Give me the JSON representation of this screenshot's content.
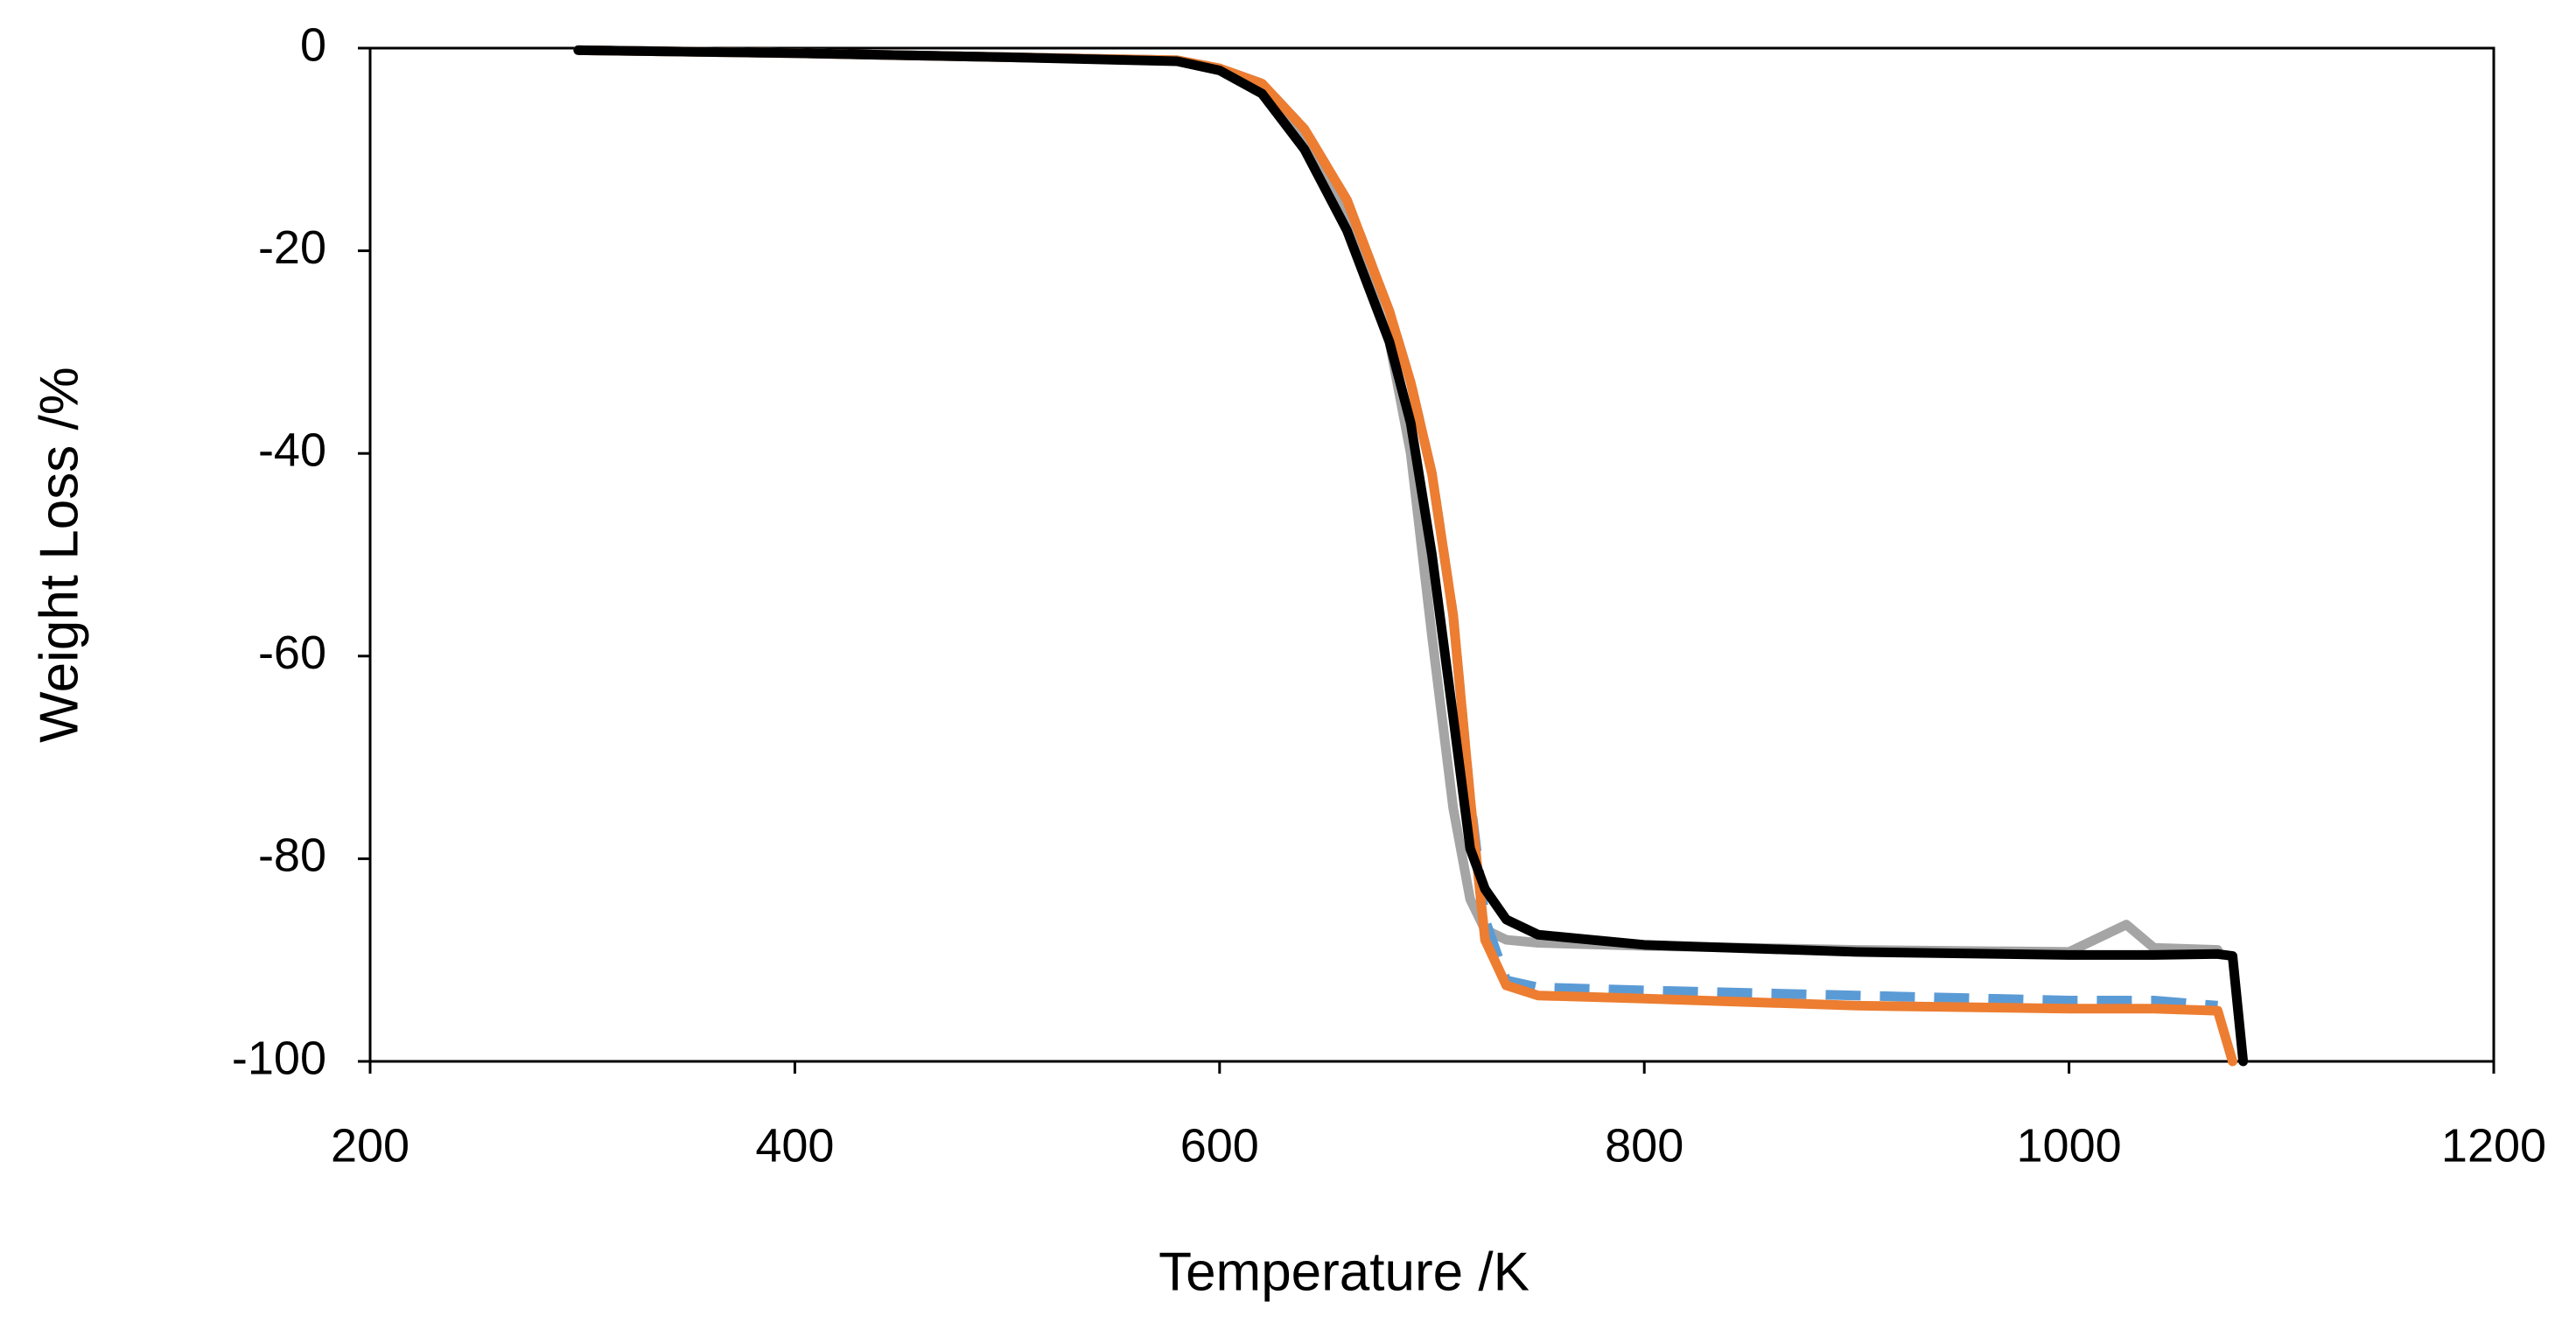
{
  "chart_data": {
    "type": "line",
    "x_label": "Temperature /K",
    "y_label": "Weight Loss /%",
    "xlim": [
      200,
      1200
    ],
    "xticks": [
      200,
      400,
      600,
      800,
      1000,
      1200
    ],
    "ylim": [
      -100,
      0
    ],
    "yticks": [
      -100,
      -80,
      -60,
      -40,
      -20,
      0
    ],
    "grid": false,
    "x": [
      298,
      400,
      500,
      580,
      600,
      620,
      640,
      660,
      680,
      690,
      700,
      710,
      718,
      725,
      735,
      750,
      800,
      900,
      1000,
      1027,
      1040,
      1070,
      1077,
      1082
    ],
    "series": [
      {
        "color": "#a5a5a5",
        "dash": false,
        "values": [
          -0.2,
          -0.5,
          -0.9,
          -1.2,
          -2,
          -4,
          -9,
          -17,
          -29,
          -40,
          -58,
          -75,
          -84,
          -87,
          -88,
          -88.3,
          -88.6,
          -89,
          -89.2,
          -86.5,
          -88.8,
          -89,
          null,
          null
        ]
      },
      {
        "color": "#5b9bd5",
        "dash": true,
        "values": [
          -0.2,
          -0.5,
          -0.9,
          -1.2,
          -2,
          -3.5,
          -8,
          -15,
          -26,
          -33,
          -42,
          -56,
          -74,
          -86,
          -92,
          -92.7,
          -93,
          -93.5,
          -94,
          -94,
          -94,
          -94.5,
          null,
          null
        ]
      },
      {
        "color": "#ed7d31",
        "dash": false,
        "values": [
          -0.2,
          -0.5,
          -0.9,
          -1.2,
          -2,
          -3.5,
          -8,
          -15,
          -26,
          -33,
          -42,
          -56,
          -74,
          -88,
          -92.5,
          -93.5,
          -93.8,
          -94.5,
          -94.8,
          -94.8,
          -94.8,
          -95,
          -100,
          null
        ]
      },
      {
        "color": "#000000",
        "dash": false,
        "values": [
          -0.2,
          -0.5,
          -0.9,
          -1.3,
          -2.2,
          -4.5,
          -10,
          -18,
          -29,
          -37,
          -50,
          -66,
          -79,
          -83,
          -86,
          -87.5,
          -88.5,
          -89.2,
          -89.5,
          -89.5,
          -89.5,
          -89.4,
          -89.6,
          -100
        ]
      }
    ]
  }
}
